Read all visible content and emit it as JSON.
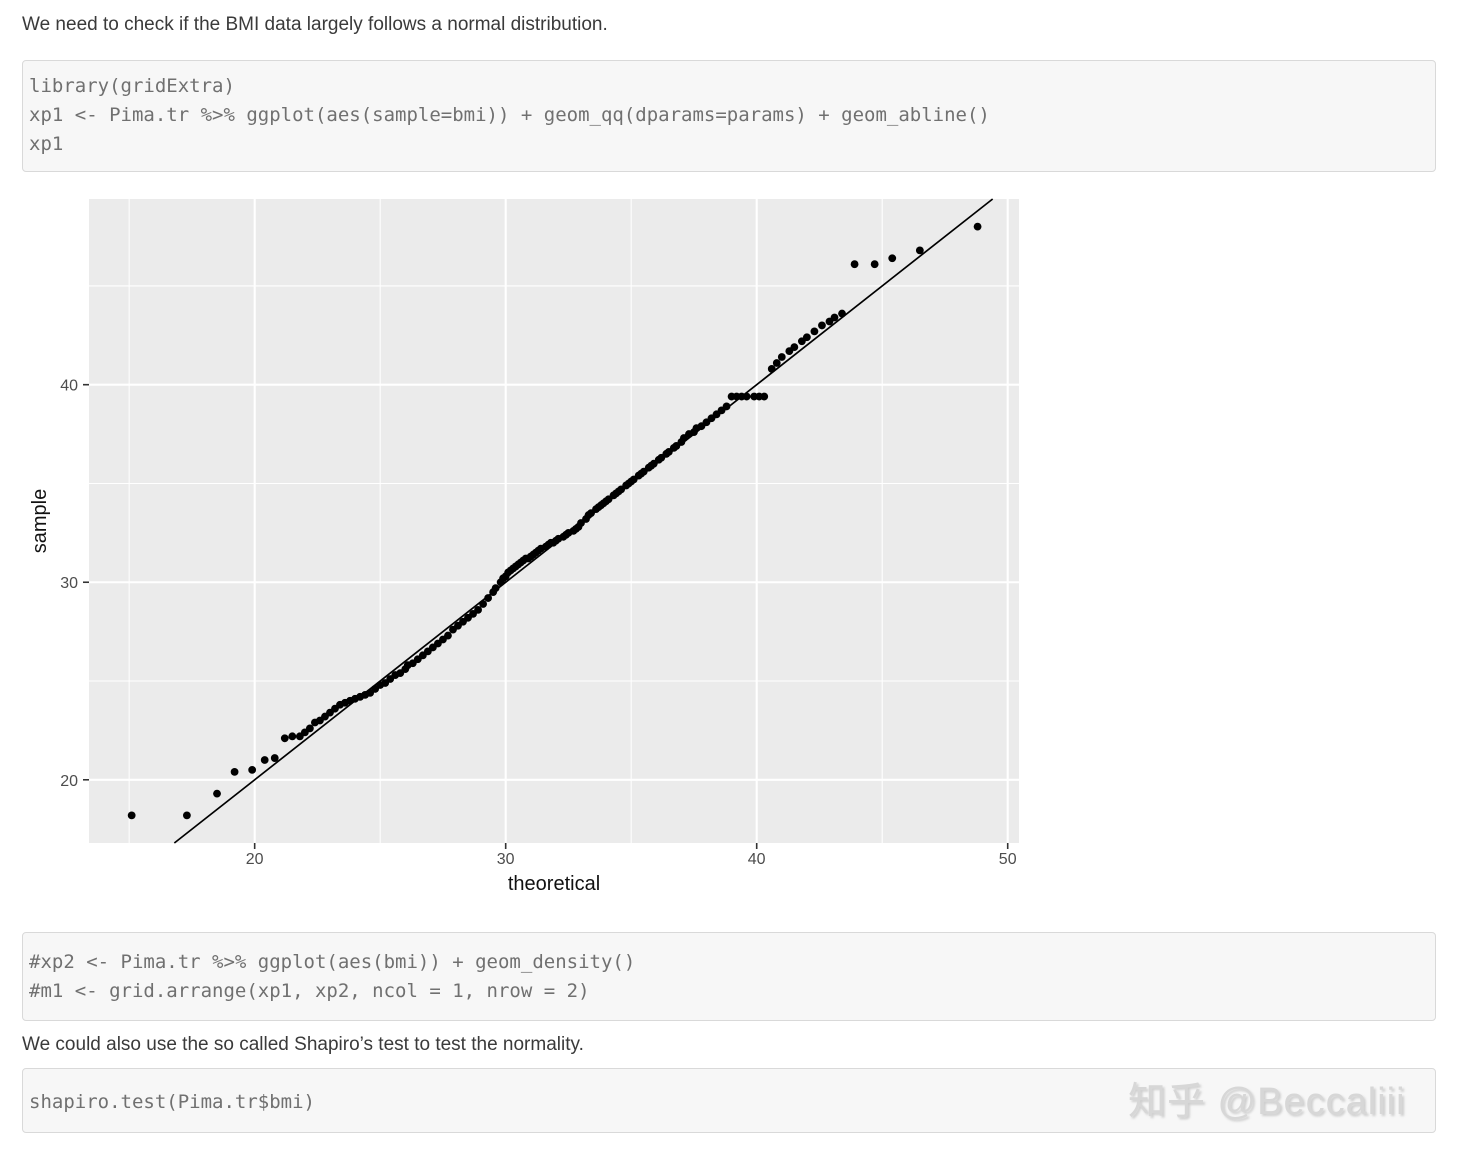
{
  "page": {
    "paragraph1": "We need to check if the BMI data largely follows a normal distribution.",
    "paragraph2": "We could also use the so called Shapiro’s test to test the normality.",
    "watermark": "知乎 @Beccaliii"
  },
  "code_blocks": [
    {
      "lines": [
        "library(gridExtra)",
        "xp1 <- Pima.tr %>% ggplot(aes(sample=bmi)) + geom_qq(dparams=params) + geom_abline()",
        "xp1"
      ]
    },
    {
      "lines": [
        "#xp2 <- Pima.tr %>% ggplot(aes(bmi)) + geom_density()",
        "#m1 <- grid.arrange(xp1, xp2, ncol = 1, nrow = 2)"
      ]
    },
    {
      "lines": [
        "shapiro.test(Pima.tr$bmi)"
      ]
    }
  ],
  "chart_data": {
    "type": "scatter",
    "title": "",
    "xlabel": "theoretical",
    "ylabel": "sample",
    "xlim": [
      13.4,
      50.45
    ],
    "ylim": [
      16.8,
      49.4
    ],
    "x_major_ticks": [
      20,
      30,
      40,
      50
    ],
    "x_minor_ticks": [
      15,
      25,
      35,
      45
    ],
    "y_major_ticks": [
      20,
      30,
      40
    ],
    "y_minor_ticks": [
      25,
      35,
      45
    ],
    "grid": true,
    "legend": "none",
    "abline": {
      "slope": 1,
      "intercept": 0
    },
    "theme": {
      "panel_bg": "#ebebeb",
      "grid_color": "#ffffff",
      "point_color": "#000000",
      "line_color": "#000000",
      "axis_text_color": "#4d4d4d",
      "axis_title_color": "#111111",
      "tick_color": "#333333"
    },
    "points": [
      [
        15.1,
        18.2
      ],
      [
        17.3,
        18.2
      ],
      [
        18.5,
        19.3
      ],
      [
        19.2,
        20.4
      ],
      [
        19.9,
        20.5
      ],
      [
        20.4,
        21.0
      ],
      [
        20.8,
        21.1
      ],
      [
        21.2,
        22.1
      ],
      [
        21.5,
        22.2
      ],
      [
        21.8,
        22.2
      ],
      [
        22.0,
        22.4
      ],
      [
        22.2,
        22.6
      ],
      [
        22.4,
        22.9
      ],
      [
        22.6,
        23.0
      ],
      [
        22.8,
        23.2
      ],
      [
        23.0,
        23.4
      ],
      [
        23.2,
        23.6
      ],
      [
        23.4,
        23.8
      ],
      [
        23.6,
        23.9
      ],
      [
        23.8,
        24.0
      ],
      [
        24.0,
        24.1
      ],
      [
        24.2,
        24.2
      ],
      [
        24.4,
        24.3
      ],
      [
        24.6,
        24.4
      ],
      [
        24.8,
        24.6
      ],
      [
        25.0,
        24.8
      ],
      [
        25.2,
        24.9
      ],
      [
        25.4,
        25.1
      ],
      [
        25.6,
        25.3
      ],
      [
        25.8,
        25.4
      ],
      [
        26.0,
        25.6
      ],
      [
        26.1,
        25.8
      ],
      [
        26.3,
        25.9
      ],
      [
        26.5,
        26.1
      ],
      [
        26.7,
        26.3
      ],
      [
        26.9,
        26.5
      ],
      [
        27.1,
        26.7
      ],
      [
        27.3,
        26.9
      ],
      [
        27.5,
        27.1
      ],
      [
        27.7,
        27.3
      ],
      [
        27.9,
        27.6
      ],
      [
        28.1,
        27.8
      ],
      [
        28.3,
        28.0
      ],
      [
        28.5,
        28.2
      ],
      [
        28.7,
        28.4
      ],
      [
        28.9,
        28.6
      ],
      [
        29.1,
        28.9
      ],
      [
        29.3,
        29.2
      ],
      [
        29.5,
        29.5
      ],
      [
        29.6,
        29.7
      ],
      [
        29.8,
        30.0
      ],
      [
        29.9,
        30.2
      ],
      [
        30.0,
        30.3
      ],
      [
        30.1,
        30.5
      ],
      [
        30.2,
        30.6
      ],
      [
        30.3,
        30.7
      ],
      [
        30.4,
        30.8
      ],
      [
        30.5,
        30.9
      ],
      [
        30.6,
        31.0
      ],
      [
        30.7,
        31.1
      ],
      [
        30.8,
        31.2
      ],
      [
        30.9,
        31.2
      ],
      [
        31.0,
        31.3
      ],
      [
        31.1,
        31.4
      ],
      [
        31.2,
        31.5
      ],
      [
        31.3,
        31.6
      ],
      [
        31.4,
        31.7
      ],
      [
        31.6,
        31.8
      ],
      [
        31.7,
        31.9
      ],
      [
        31.8,
        32.0
      ],
      [
        31.9,
        32.0
      ],
      [
        32.0,
        32.1
      ],
      [
        32.1,
        32.2
      ],
      [
        32.3,
        32.3
      ],
      [
        32.4,
        32.4
      ],
      [
        32.5,
        32.5
      ],
      [
        32.7,
        32.6
      ],
      [
        32.8,
        32.7
      ],
      [
        32.9,
        32.8
      ],
      [
        33.0,
        33.0
      ],
      [
        33.2,
        33.2
      ],
      [
        33.3,
        33.4
      ],
      [
        33.4,
        33.5
      ],
      [
        33.6,
        33.7
      ],
      [
        33.7,
        33.8
      ],
      [
        33.8,
        33.9
      ],
      [
        33.9,
        34.0
      ],
      [
        34.0,
        34.1
      ],
      [
        34.1,
        34.2
      ],
      [
        34.3,
        34.4
      ],
      [
        34.4,
        34.5
      ],
      [
        34.5,
        34.6
      ],
      [
        34.6,
        34.7
      ],
      [
        34.8,
        34.9
      ],
      [
        34.9,
        35.0
      ],
      [
        35.0,
        35.1
      ],
      [
        35.1,
        35.2
      ],
      [
        35.3,
        35.4
      ],
      [
        35.4,
        35.5
      ],
      [
        35.5,
        35.6
      ],
      [
        35.7,
        35.8
      ],
      [
        35.8,
        35.9
      ],
      [
        35.9,
        36.0
      ],
      [
        36.1,
        36.2
      ],
      [
        36.2,
        36.3
      ],
      [
        36.4,
        36.5
      ],
      [
        36.5,
        36.6
      ],
      [
        36.7,
        36.8
      ],
      [
        36.8,
        36.9
      ],
      [
        37.0,
        37.1
      ],
      [
        37.1,
        37.3
      ],
      [
        37.3,
        37.5
      ],
      [
        37.5,
        37.6
      ],
      [
        37.6,
        37.8
      ],
      [
        37.8,
        37.9
      ],
      [
        38.0,
        38.1
      ],
      [
        38.2,
        38.3
      ],
      [
        38.4,
        38.5
      ],
      [
        38.6,
        38.7
      ],
      [
        38.8,
        38.9
      ],
      [
        39.0,
        39.4
      ],
      [
        39.2,
        39.4
      ],
      [
        39.4,
        39.4
      ],
      [
        39.6,
        39.4
      ],
      [
        39.9,
        39.4
      ],
      [
        40.1,
        39.4
      ],
      [
        40.3,
        39.4
      ],
      [
        40.6,
        40.8
      ],
      [
        40.8,
        41.1
      ],
      [
        41.0,
        41.4
      ],
      [
        41.3,
        41.7
      ],
      [
        41.5,
        41.9
      ],
      [
        41.8,
        42.2
      ],
      [
        42.0,
        42.4
      ],
      [
        42.3,
        42.7
      ],
      [
        42.6,
        43.0
      ],
      [
        42.9,
        43.2
      ],
      [
        43.1,
        43.4
      ],
      [
        43.4,
        43.6
      ],
      [
        43.9,
        46.1
      ],
      [
        44.7,
        46.1
      ],
      [
        45.4,
        46.4
      ],
      [
        46.5,
        46.8
      ],
      [
        48.8,
        48.0
      ]
    ]
  }
}
